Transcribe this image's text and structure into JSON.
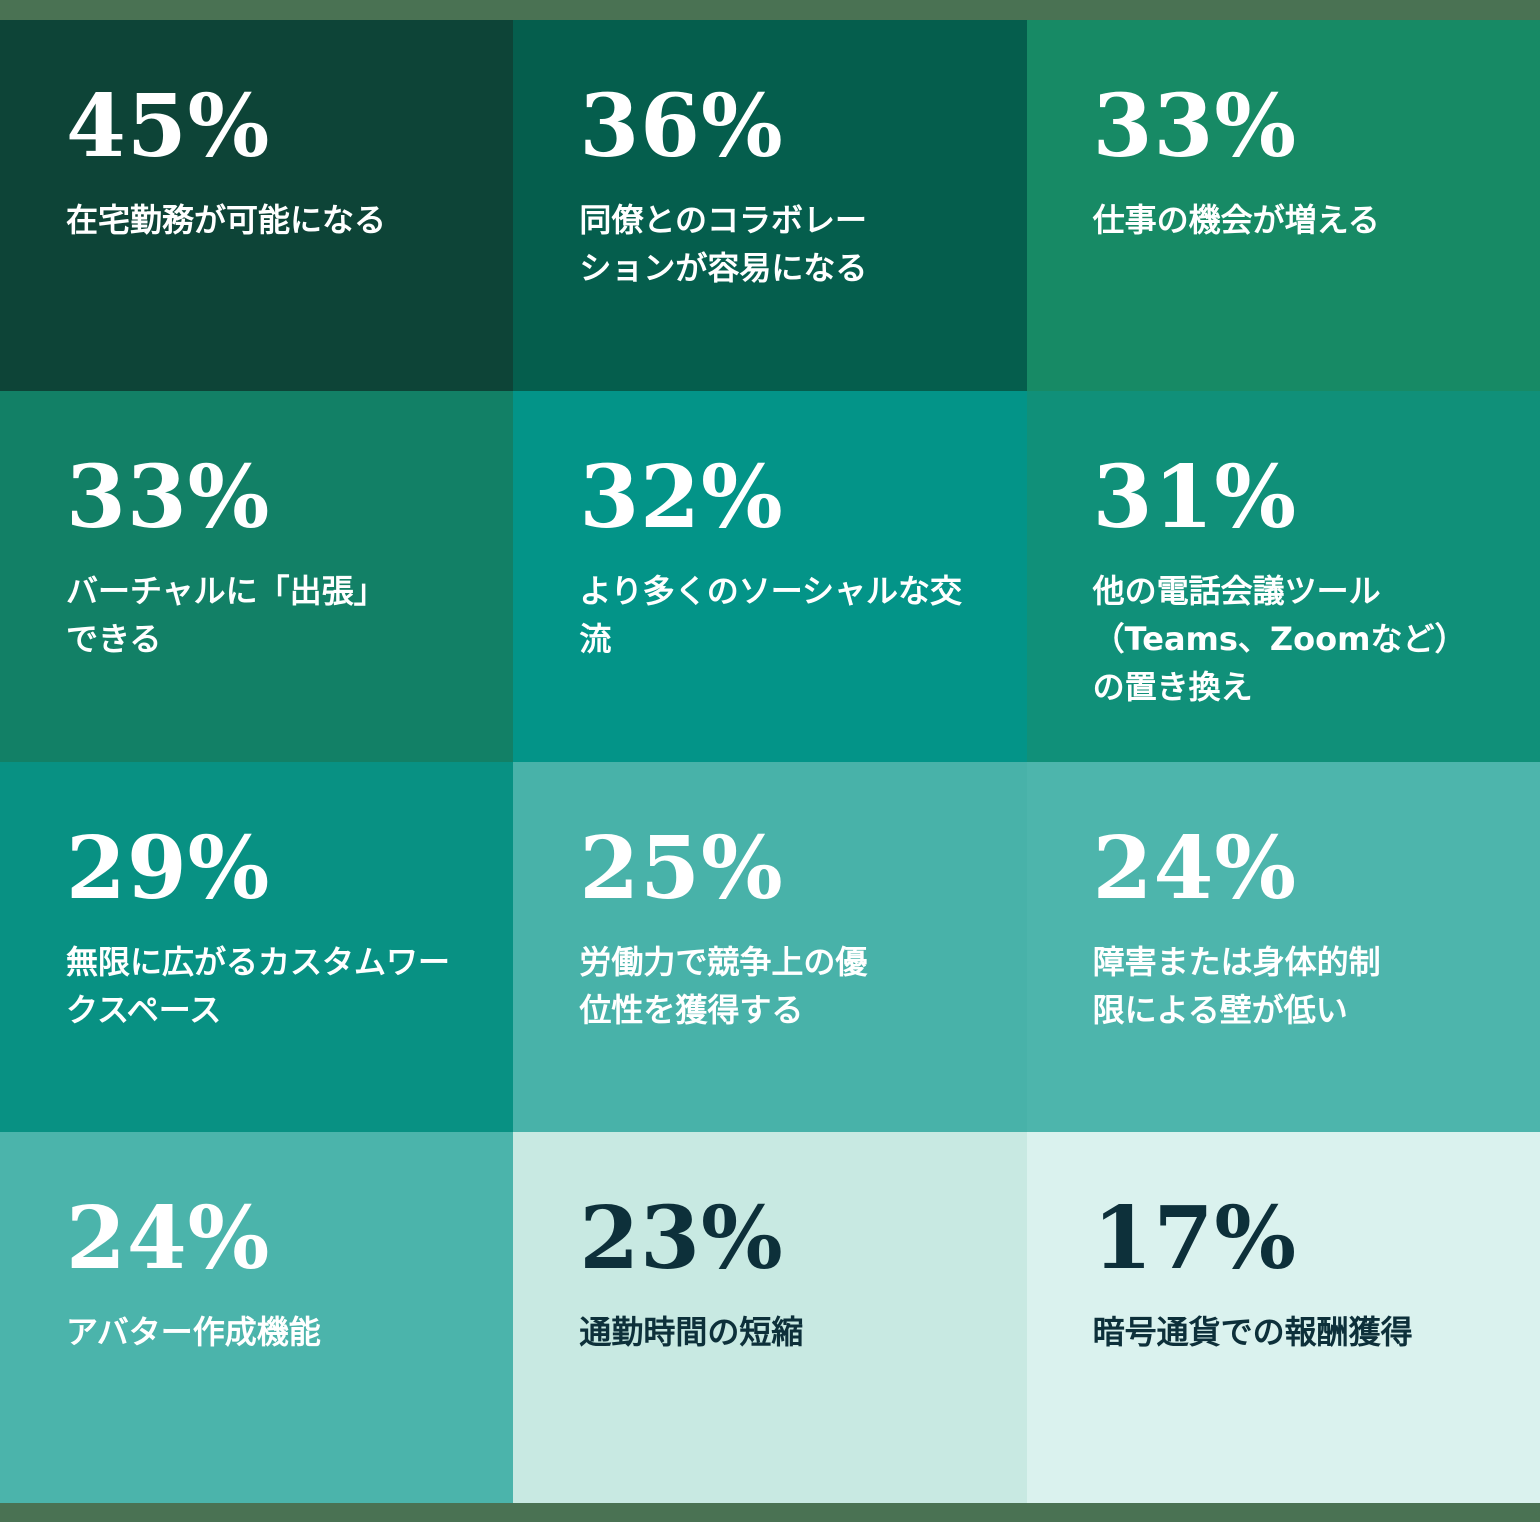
{
  "page": {
    "frame_color": "#4A7253",
    "background": "#FFFFFF"
  },
  "grid": {
    "rows": 4,
    "cols": 3,
    "tiles": [
      {
        "value": "45%",
        "label": "在宅勤務が可能になる",
        "bg": "#0D4437",
        "fg": "#FFFFFF"
      },
      {
        "value": "36%",
        "label": "同僚とのコラボレー\nションが容易になる",
        "bg": "#055E4D",
        "fg": "#FFFFFF"
      },
      {
        "value": "33%",
        "label": "仕事の機会が増える",
        "bg": "#178A65",
        "fg": "#FFFFFF"
      },
      {
        "value": "33%",
        "label": "バーチャルに「出張」\nできる",
        "bg": "#128066",
        "fg": "#FFFFFF"
      },
      {
        "value": "32%",
        "label": "より多くのソーシャルな交流",
        "bg": "#039488",
        "fg": "#FFFFFF"
      },
      {
        "value": "31%",
        "label": "他の電話会議ツール\n（Teams、Zoomなど）\nの置き換え",
        "bg": "#109079",
        "fg": "#FFFFFF"
      },
      {
        "value": "29%",
        "label": "無限に広がるカスタムワー\nクスペース",
        "bg": "#089183",
        "fg": "#FFFFFF"
      },
      {
        "value": "25%",
        "label": "労働力で競争上の優\n位性を獲得する",
        "bg": "#48B2A9",
        "fg": "#FFFFFF"
      },
      {
        "value": "24%",
        "label": "障害または身体的制\n限による壁が低い",
        "bg": "#4DB5AC",
        "fg": "#FFFFFF"
      },
      {
        "value": "24%",
        "label": "アバター作成機能",
        "bg": "#4BB4AB",
        "fg": "#FFFFFF"
      },
      {
        "value": "23%",
        "label": "通勤時間の短縮",
        "bg": "#C8E9E2",
        "fg": "#0D303A"
      },
      {
        "value": "17%",
        "label": "暗号通貨での報酬獲得",
        "bg": "#DAF2EE",
        "fg": "#0D303A"
      }
    ]
  },
  "chart_data": {
    "type": "heatmap",
    "title": "",
    "categories": [
      "在宅勤務が可能になる",
      "同僚とのコラボレーションが容易になる",
      "仕事の機会が増える",
      "バーチャルに「出張」できる",
      "より多くのソーシャルな交流",
      "他の電話会議ツール（Teams、Zoomなど）の置き換え",
      "無限に広がるカスタムワークスペース",
      "労働力で競争上の優位性を獲得する",
      "障害または身体的制限による壁が低い",
      "アバター作成機能",
      "通勤時間の短縮",
      "暗号通貨での報酬獲得"
    ],
    "values": [
      45,
      36,
      33,
      33,
      32,
      31,
      29,
      25,
      24,
      24,
      23,
      17
    ],
    "value_unit": "%",
    "layout": {
      "rows": 4,
      "cols": 3,
      "order": "row-major, descending"
    },
    "legend": "none",
    "color_scale": {
      "high_value_color": "#0D4437",
      "low_value_color": "#DAF2EE"
    }
  }
}
